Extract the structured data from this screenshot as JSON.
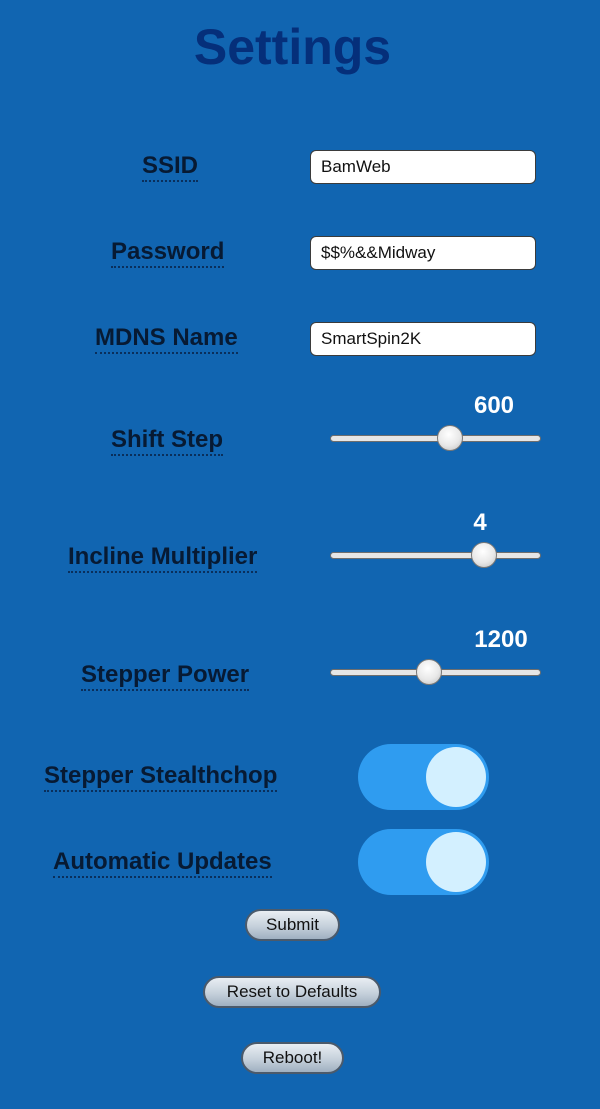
{
  "page": {
    "title": "Settings"
  },
  "fields": {
    "ssid": {
      "label": "SSID",
      "value": "BamWeb"
    },
    "password": {
      "label": "Password",
      "value": "$$%&&Midway"
    },
    "mdns": {
      "label": "MDNS Name",
      "value": "SmartSpin2K"
    }
  },
  "sliders": {
    "shift_step": {
      "label": "Shift Step",
      "value": "600",
      "fraction": 0.57
    },
    "incline_multiplier": {
      "label": "Incline Multiplier",
      "value": "4",
      "fraction": 0.73
    },
    "stepper_power": {
      "label": "Stepper Power",
      "value": "1200",
      "fraction": 0.47
    }
  },
  "toggles": {
    "stealthchop": {
      "label": "Stepper Stealthchop",
      "on": true
    },
    "auto_updates": {
      "label": "Automatic Updates",
      "on": true
    }
  },
  "buttons": {
    "submit": "Submit",
    "reset": "Reset to Defaults",
    "reboot": "Reboot!"
  },
  "colors": {
    "background": "#1165b1",
    "title": "#052f7a",
    "toggle_on": "#2f9cf0",
    "toggle_knob": "#d3f0ff"
  }
}
